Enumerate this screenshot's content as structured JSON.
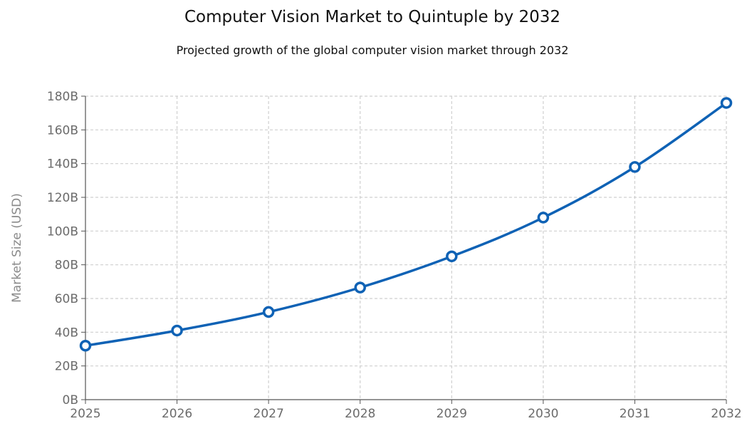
{
  "chart_data": {
    "type": "line",
    "title": "Computer Vision Market to Quintuple by 2032",
    "subtitle": "Projected growth of the global computer vision market through 2032",
    "xlabel": "",
    "ylabel": "Market Size (USD)",
    "categories": [
      "2025",
      "2026",
      "2027",
      "2028",
      "2029",
      "2030",
      "2031",
      "2032"
    ],
    "series": [
      {
        "name": "Market Size",
        "values": [
          32,
          41,
          52,
          66.5,
          85,
          108,
          138,
          176
        ]
      }
    ],
    "ylim": [
      0,
      180
    ],
    "yticks": [
      "0B",
      "20B",
      "40B",
      "60B",
      "80B",
      "100B",
      "120B",
      "140B",
      "160B",
      "180B"
    ],
    "grid": true,
    "line_color": "#0f62b5"
  }
}
